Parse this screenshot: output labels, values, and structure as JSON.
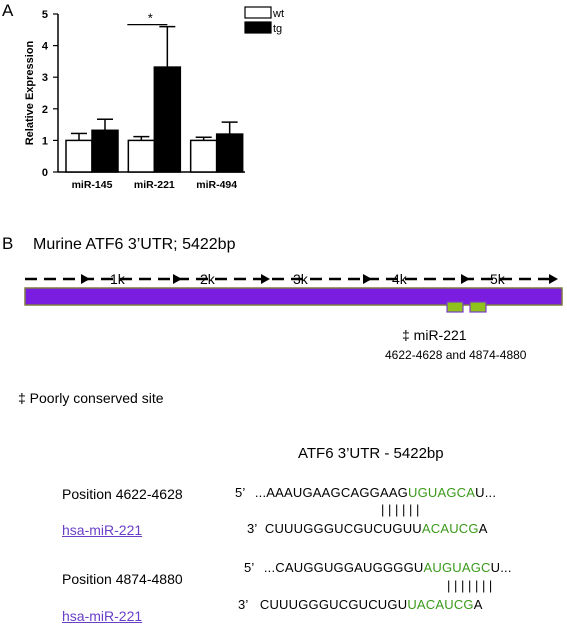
{
  "panel_a": {
    "label": "A"
  },
  "panel_b": {
    "label": "B",
    "utr_title": "Murine ATF6 3’UTR; 5422bp",
    "kb_marks": [
      "1k",
      "2k",
      "3k",
      "4k",
      "5k"
    ],
    "site_label": "‡ miR-221",
    "site_positions": "4622-4628  and 4874-4880",
    "footnote": "‡ Poorly  conserved site",
    "bar_color": "#7a1de0",
    "site_color": "#8fc21b"
  },
  "alignment": {
    "title": "ATF6 3’UTR - 5422bp",
    "rows": [
      {
        "position": "Position 4622-4628",
        "mirna": "hsa-miR-221",
        "top_prefix": "5’",
        "top_black": "...AAAUGAAGCAGGAAG",
        "top_green": "UGUAGCA",
        "top_tail": "U...",
        "bars": "|  |  |  |  |  |",
        "bottom_prefix": "3’",
        "bottom_black": "CUUUGGGUCGUCUGUU",
        "bottom_green": "ACAUCG",
        "bottom_tail": "A"
      },
      {
        "position": "Position 4874-4880",
        "mirna": "hsa-miR-221",
        "top_prefix": "5’",
        "top_black": "...CAUGGUGGAUGGGGU",
        "top_green": "AUGUAGC",
        "top_tail": "U...",
        "bars": "|  |  |  |  |  |  |",
        "bottom_prefix": "3’",
        "bottom_black": "CUUUGGGUCGUCUGU",
        "bottom_green": "UACAUCG",
        "bottom_tail": "A"
      }
    ]
  },
  "chart_data": {
    "type": "bar",
    "title": "",
    "xlabel": "",
    "ylabel": "Relative Expression",
    "ylim": [
      0,
      5
    ],
    "yticks": [
      "0",
      "1",
      "2",
      "3",
      "4",
      "5"
    ],
    "categories": [
      "miR-145",
      "miR-221",
      "miR-494"
    ],
    "series": [
      {
        "name": "wt",
        "color": "#ffffff",
        "values": [
          1.0,
          1.0,
          1.0
        ],
        "errors": [
          0.22,
          0.12,
          0.1
        ]
      },
      {
        "name": "tg",
        "color": "#000000",
        "values": [
          1.32,
          3.32,
          1.2
        ],
        "errors": [
          0.35,
          1.28,
          0.38
        ]
      }
    ],
    "annotation": "*",
    "legend_position": "top-right",
    "grid": false
  }
}
